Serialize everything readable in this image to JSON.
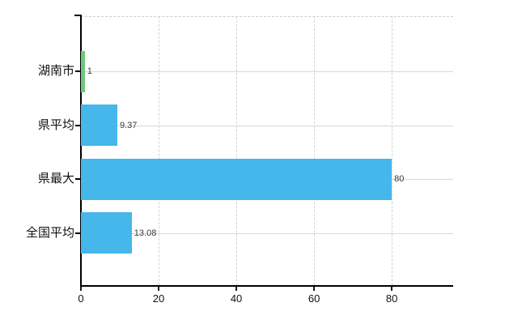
{
  "chart_data": {
    "type": "bar",
    "orientation": "horizontal",
    "title": "",
    "xlabel": "",
    "ylabel": "",
    "categories": [
      "湖南市",
      "県平均",
      "県最大",
      "全国平均"
    ],
    "values": [
      1,
      9.37,
      80,
      13.08
    ],
    "value_labels": [
      "1",
      "9.37",
      "80",
      "13.08"
    ],
    "bar_colors": [
      "#6dc87e",
      "#45b7ea",
      "#45b7ea",
      "#45b7ea"
    ],
    "x_ticks": [
      0,
      20,
      40,
      60,
      80
    ],
    "x_tick_labels": [
      "0",
      "20",
      "40",
      "60",
      "80"
    ],
    "xlim": [
      0,
      95.8
    ],
    "legend": "none",
    "grid": {
      "vertical_style": "dashed",
      "horizontal_style": "solid",
      "vertical_color": "#d4d2d2",
      "horizontal_color": "#d9d9d9",
      "top_border_style": "dashed"
    },
    "colors": {
      "axis": "#000000",
      "bar_blue": "#45b7ea",
      "bar_green": "#6dc87e",
      "value_label": "#3a3a3a",
      "tick_label": "#111111",
      "background": "#ffffff"
    }
  }
}
